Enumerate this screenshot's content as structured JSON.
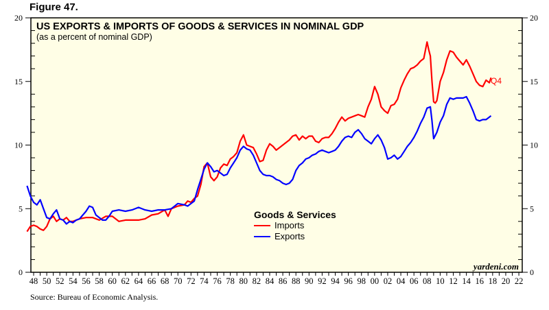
{
  "figure_label": "Figure 47.",
  "source": "Source: Bureau of Economic Analysis.",
  "watermark": "yardeni.com",
  "colors": {
    "imports": "#ff0000",
    "exports": "#0000ff",
    "plot_bg": "#fffee6"
  },
  "chart_data": {
    "type": "line",
    "title": "US EXPORTS & IMPORTS OF GOODS & SERVICES IN NOMINAL GDP",
    "subtitle": "(as a percent of nominal GDP)",
    "xlabel": "",
    "ylabel": "",
    "xlim": [
      1947,
      2022.5
    ],
    "ylim": [
      0,
      20
    ],
    "y_ticks": [
      0,
      5,
      10,
      15,
      20
    ],
    "y_ticks_right": [
      0,
      5,
      10,
      15,
      20
    ],
    "x_tick_labels": [
      "48",
      "50",
      "52",
      "54",
      "56",
      "58",
      "60",
      "62",
      "64",
      "66",
      "68",
      "70",
      "72",
      "74",
      "76",
      "78",
      "80",
      "82",
      "84",
      "86",
      "88",
      "90",
      "92",
      "94",
      "96",
      "98",
      "00",
      "02",
      "04",
      "06",
      "08",
      "10",
      "12",
      "14",
      "16",
      "18",
      "20",
      "22"
    ],
    "x_tick_years": [
      1948,
      1950,
      1952,
      1954,
      1956,
      1958,
      1960,
      1962,
      1964,
      1966,
      1968,
      1970,
      1972,
      1974,
      1976,
      1978,
      1980,
      1982,
      1984,
      1986,
      1988,
      1990,
      1992,
      1994,
      1996,
      1998,
      2000,
      2002,
      2004,
      2006,
      2008,
      2010,
      2012,
      2014,
      2016,
      2018,
      2020,
      2022
    ],
    "grid": false,
    "legend": {
      "title": "Goods & Services",
      "position": "center-bottom",
      "entries": [
        "Imports",
        "Exports"
      ]
    },
    "end_annotation": "Q4",
    "series": [
      {
        "name": "Imports",
        "x": [
          1947,
          1947.5,
          1948,
          1948.5,
          1949,
          1949.5,
          1950,
          1950.5,
          1951,
          1951.5,
          1952,
          1952.5,
          1953,
          1953.5,
          1954,
          1955,
          1956,
          1957,
          1958,
          1959,
          1960,
          1961,
          1962,
          1963,
          1964,
          1965,
          1966,
          1967,
          1968,
          1968.5,
          1969,
          1970,
          1971,
          1971.5,
          1972,
          1972.5,
          1973,
          1973.5,
          1974,
          1974.5,
          1975,
          1975.5,
          1976,
          1976.5,
          1977,
          1977.5,
          1978,
          1978.5,
          1979,
          1979.5,
          1980,
          1980.5,
          1981,
          1981.5,
          1982,
          1982.5,
          1983,
          1983.5,
          1984,
          1984.5,
          1985,
          1985.5,
          1986,
          1986.5,
          1987,
          1987.5,
          1988,
          1988.5,
          1989,
          1989.5,
          1990,
          1990.5,
          1991,
          1991.5,
          1992,
          1992.5,
          1993,
          1993.5,
          1994,
          1994.5,
          1995,
          1995.5,
          1996,
          1996.5,
          1997,
          1997.5,
          1998,
          1998.5,
          1999,
          1999.5,
          2000,
          2000.5,
          2001,
          2001.5,
          2002,
          2002.5,
          2003,
          2003.5,
          2004,
          2004.5,
          2005,
          2005.5,
          2006,
          2006.5,
          2007,
          2007.5,
          2008,
          2008.25,
          2008.5,
          2008.75,
          2009,
          2009.25,
          2009.5,
          2010,
          2010.5,
          2011,
          2011.5,
          2012,
          2012.5,
          2013,
          2013.5,
          2014,
          2014.5,
          2015,
          2015.5,
          2016,
          2016.5,
          2017,
          2017.5,
          2017.75
        ],
        "values": [
          3.2,
          3.6,
          3.7,
          3.6,
          3.4,
          3.3,
          3.6,
          4.2,
          4.4,
          4.0,
          4.2,
          4.1,
          4.3,
          4.0,
          4.0,
          4.2,
          4.3,
          4.3,
          4.1,
          4.4,
          4.4,
          4.0,
          4.1,
          4.1,
          4.1,
          4.2,
          4.5,
          4.6,
          4.9,
          4.4,
          5.0,
          5.2,
          5.3,
          5.6,
          5.5,
          5.8,
          6.0,
          6.9,
          8.3,
          8.6,
          7.5,
          7.2,
          7.5,
          8.2,
          8.5,
          8.4,
          8.9,
          9.1,
          9.4,
          10.3,
          10.8,
          10.0,
          9.9,
          9.8,
          9.3,
          8.7,
          8.8,
          9.6,
          10.1,
          9.9,
          9.6,
          9.8,
          10.0,
          10.2,
          10.4,
          10.7,
          10.8,
          10.4,
          10.7,
          10.5,
          10.7,
          10.7,
          10.3,
          10.2,
          10.5,
          10.6,
          10.6,
          10.9,
          11.3,
          11.8,
          12.2,
          11.9,
          12.1,
          12.2,
          12.3,
          12.4,
          12.3,
          12.2,
          13.0,
          13.6,
          14.6,
          14.0,
          13.0,
          12.7,
          12.5,
          13.1,
          13.2,
          13.6,
          14.5,
          15.1,
          15.6,
          16.0,
          16.1,
          16.3,
          16.6,
          16.8,
          18.1,
          17.5,
          17.0,
          15.0,
          13.4,
          13.3,
          13.5,
          15.0,
          15.7,
          16.7,
          17.4,
          17.3,
          16.9,
          16.6,
          16.3,
          16.7,
          16.2,
          15.6,
          15.0,
          14.7,
          14.6,
          15.1,
          14.9,
          15.3
        ]
      },
      {
        "name": "Exports",
        "x": [
          1947,
          1947.5,
          1948,
          1948.5,
          1949,
          1949.5,
          1950,
          1950.5,
          1951,
          1951.5,
          1952,
          1952.5,
          1953,
          1953.5,
          1954,
          1954.5,
          1955,
          1955.5,
          1956,
          1956.5,
          1957,
          1957.5,
          1958,
          1958.5,
          1959,
          1959.5,
          1960,
          1961,
          1962,
          1963,
          1964,
          1965,
          1966,
          1967,
          1968,
          1969,
          1970,
          1971,
          1971.5,
          1972,
          1972.5,
          1973,
          1973.5,
          1974,
          1974.5,
          1975,
          1975.5,
          1976,
          1976.5,
          1977,
          1977.5,
          1978,
          1978.5,
          1979,
          1979.5,
          1980,
          1980.5,
          1981,
          1981.5,
          1982,
          1982.5,
          1983,
          1983.5,
          1984,
          1984.5,
          1985,
          1985.5,
          1986,
          1986.5,
          1987,
          1987.5,
          1988,
          1988.5,
          1989,
          1989.5,
          1990,
          1990.5,
          1991,
          1991.5,
          1992,
          1992.5,
          1993,
          1993.5,
          1994,
          1994.5,
          1995,
          1995.5,
          1996,
          1996.5,
          1997,
          1997.5,
          1998,
          1998.5,
          1999,
          1999.5,
          2000,
          2000.5,
          2001,
          2001.5,
          2002,
          2002.5,
          2003,
          2003.5,
          2004,
          2004.5,
          2005,
          2005.5,
          2006,
          2006.5,
          2007,
          2007.5,
          2008,
          2008.5,
          2008.75,
          2009,
          2009.5,
          2010,
          2010.5,
          2011,
          2011.5,
          2012,
          2012.5,
          2013,
          2013.5,
          2014,
          2014.5,
          2015,
          2015.5,
          2016,
          2016.5,
          2017,
          2017.5,
          2017.75
        ],
        "values": [
          6.8,
          6.0,
          5.5,
          5.3,
          5.7,
          5.0,
          4.3,
          4.2,
          4.6,
          4.9,
          4.2,
          4.1,
          3.8,
          4.0,
          3.9,
          4.1,
          4.2,
          4.5,
          4.8,
          5.2,
          5.1,
          4.5,
          4.3,
          4.1,
          4.1,
          4.4,
          4.8,
          4.9,
          4.8,
          4.9,
          5.1,
          4.9,
          4.8,
          4.9,
          4.9,
          5.0,
          5.4,
          5.3,
          5.2,
          5.4,
          5.6,
          6.5,
          7.3,
          8.1,
          8.6,
          8.3,
          7.9,
          8.0,
          7.8,
          7.6,
          7.7,
          8.2,
          8.6,
          9.0,
          9.6,
          9.9,
          9.7,
          9.6,
          9.2,
          8.6,
          8.0,
          7.7,
          7.6,
          7.6,
          7.5,
          7.3,
          7.2,
          7.0,
          6.9,
          7.0,
          7.3,
          8.0,
          8.4,
          8.6,
          8.9,
          9.0,
          9.2,
          9.3,
          9.5,
          9.6,
          9.5,
          9.4,
          9.5,
          9.6,
          9.9,
          10.3,
          10.6,
          10.7,
          10.6,
          11.0,
          11.2,
          10.9,
          10.5,
          10.3,
          10.1,
          10.5,
          10.8,
          10.4,
          9.8,
          8.9,
          9.0,
          9.2,
          8.9,
          9.1,
          9.5,
          9.9,
          10.2,
          10.6,
          11.1,
          11.7,
          12.2,
          12.9,
          13.0,
          11.9,
          10.5,
          11.0,
          11.8,
          12.3,
          13.2,
          13.7,
          13.6,
          13.7,
          13.7,
          13.7,
          13.8,
          13.3,
          12.7,
          12.0,
          11.9,
          12.0,
          12.0,
          12.2,
          12.3
        ]
      }
    ]
  }
}
